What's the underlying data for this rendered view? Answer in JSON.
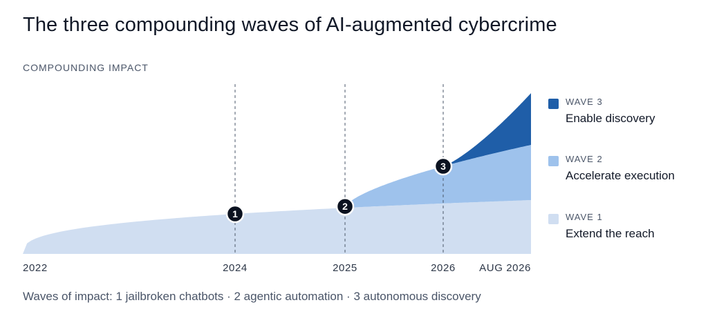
{
  "chart_data": {
    "type": "area",
    "title": "The three compounding waves of AI-augmented cybercrime",
    "ylabel": "COMPOUNDING IMPACT",
    "xlabel": "",
    "x_ticks": [
      "2022",
      "2024",
      "2025",
      "2026",
      "AUG 2026"
    ],
    "x_range": [
      "2022",
      "AUG 2026"
    ],
    "grid": false,
    "legend_position": "right",
    "series": [
      {
        "id": "wave1",
        "wave": "WAVE 1",
        "name": "Extend the reach",
        "color": "#d0def1",
        "starts_at": "2022",
        "relative_values": [
          0,
          0.4,
          0.54,
          0.65,
          0.76,
          0.82,
          0.93,
          1.0
        ]
      },
      {
        "id": "wave2",
        "wave": "WAVE 2",
        "name": "Accelerate execution",
        "color": "#9ec2ec",
        "starts_at": "2025",
        "relative_values": [
          0,
          0.6,
          1.0
        ]
      },
      {
        "id": "wave3",
        "wave": "WAVE 3",
        "name": "Enable discovery",
        "color": "#1f5ea8",
        "starts_at": "2026",
        "relative_values": [
          0,
          0.45,
          1.0
        ]
      }
    ],
    "markers": [
      {
        "label": "1",
        "x": "2024"
      },
      {
        "label": "2",
        "x": "2025"
      },
      {
        "label": "3",
        "x": "2026"
      }
    ],
    "footnote": "Waves of impact: 1 jailbroken chatbots · 2 agentic automation · 3 autonomous discovery"
  }
}
